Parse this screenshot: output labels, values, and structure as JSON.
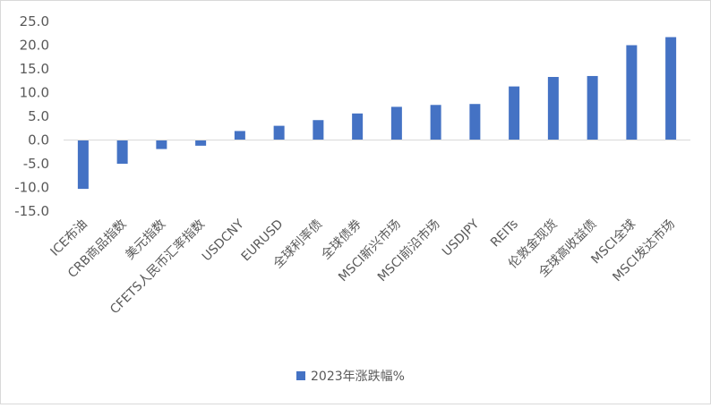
{
  "chart_data": {
    "type": "bar",
    "categories": [
      "ICE布油",
      "CRB商品指数",
      "美元指数",
      "CFETS人民币汇率指数",
      "USDCNY",
      "EURUSD",
      "全球利率债",
      "全球债券",
      "MSCI新兴市场",
      "MSCI前沿市场",
      "USDJPY",
      "REITs",
      "伦敦金现货",
      "全球高收益债",
      "MSCI全球",
      "MSCI发达市场"
    ],
    "series": [
      {
        "name": "2023年涨跌幅%",
        "values": [
          -10.3,
          -5.0,
          -1.9,
          -1.2,
          1.9,
          3.0,
          4.2,
          5.6,
          7.0,
          7.4,
          7.6,
          11.3,
          13.3,
          13.5,
          20.0,
          21.7
        ]
      }
    ],
    "ylim": [
      -15,
      25
    ],
    "yticks": [
      "25.0",
      "20.0",
      "15.0",
      "10.0",
      "5.0",
      "0.0",
      "-5.0",
      "-10.0",
      "-15.0"
    ],
    "legend_position": "bottom",
    "grid": false,
    "colors": {
      "bar": "#4472c4",
      "axis": "#d9d9d9",
      "text": "#595959"
    }
  }
}
